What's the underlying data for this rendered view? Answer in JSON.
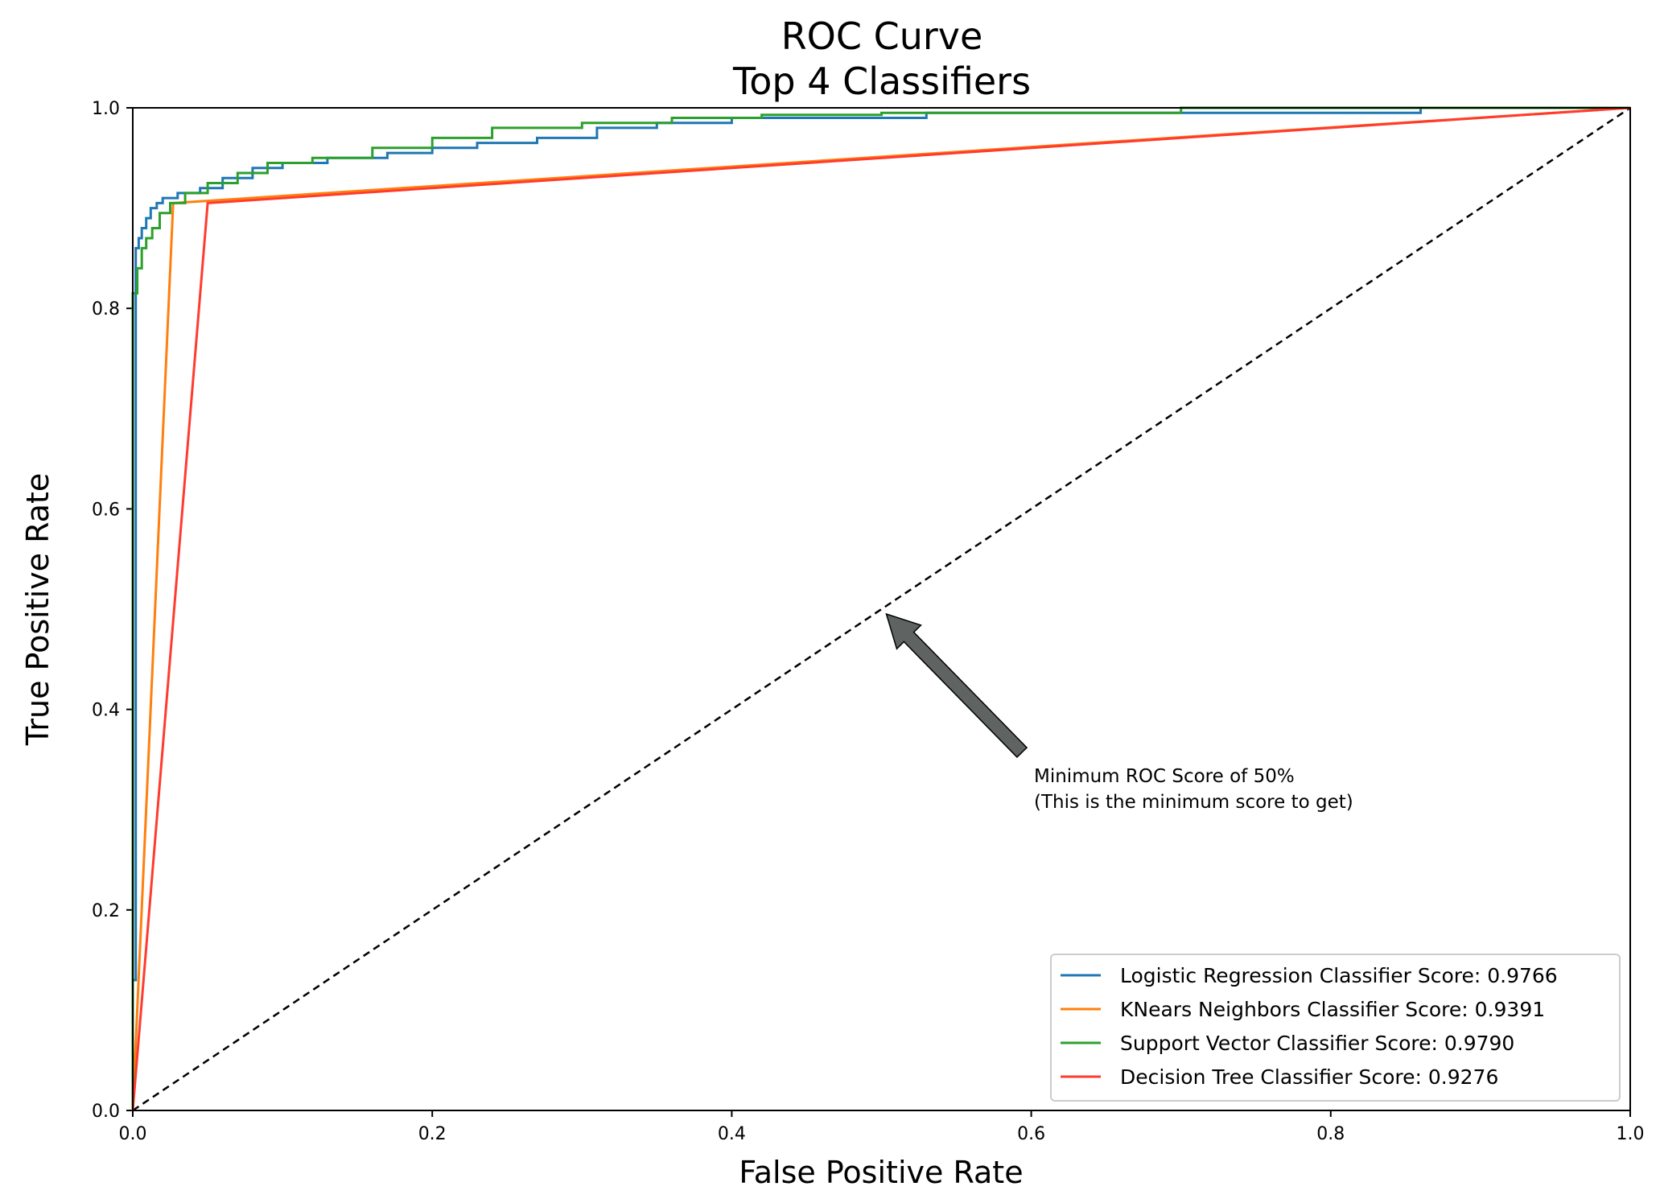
{
  "chart_data": {
    "type": "line",
    "title_lines": [
      "ROC Curve",
      "Top 4 Classifiers"
    ],
    "xlabel": "False Positive Rate",
    "ylabel": "True Positive Rate",
    "xlim": [
      0.0,
      1.0
    ],
    "ylim": [
      0.0,
      1.0
    ],
    "xticks": [
      "0.0",
      "0.2",
      "0.4",
      "0.6",
      "0.8",
      "1.0"
    ],
    "yticks": [
      "0.0",
      "0.2",
      "0.4",
      "0.6",
      "0.8",
      "1.0"
    ],
    "legend_position": "bottom-right",
    "series": [
      {
        "name": "Logistic Regression Classifier Score: 0.9766",
        "color": "#1f77b4",
        "x": [
          0.0,
          0.0,
          0.002,
          0.002,
          0.004,
          0.004,
          0.006,
          0.006,
          0.009,
          0.009,
          0.012,
          0.012,
          0.016,
          0.016,
          0.02,
          0.02,
          0.03,
          0.03,
          0.045,
          0.045,
          0.06,
          0.06,
          0.08,
          0.08,
          0.1,
          0.1,
          0.13,
          0.13,
          0.17,
          0.17,
          0.2,
          0.2,
          0.23,
          0.23,
          0.27,
          0.27,
          0.31,
          0.31,
          0.35,
          0.35,
          0.4,
          0.4,
          0.53,
          0.53,
          0.86,
          0.86,
          1.0
        ],
        "y": [
          0.0,
          0.13,
          0.13,
          0.86,
          0.86,
          0.87,
          0.87,
          0.88,
          0.88,
          0.89,
          0.89,
          0.9,
          0.9,
          0.905,
          0.905,
          0.91,
          0.91,
          0.915,
          0.915,
          0.92,
          0.92,
          0.93,
          0.93,
          0.94,
          0.94,
          0.945,
          0.945,
          0.95,
          0.95,
          0.955,
          0.955,
          0.96,
          0.96,
          0.965,
          0.965,
          0.97,
          0.97,
          0.98,
          0.98,
          0.985,
          0.985,
          0.99,
          0.99,
          0.995,
          0.995,
          1.0,
          1.0
        ]
      },
      {
        "name": "KNears Neighbors Classifier Score: 0.9391",
        "color": "#ff7f0e",
        "x": [
          0.0,
          0.027,
          1.0
        ],
        "y": [
          0.0,
          0.905,
          1.0
        ]
      },
      {
        "name": "Support Vector Classifier Score: 0.9790",
        "color": "#2ca02c",
        "x": [
          0.0,
          0.0,
          0.003,
          0.003,
          0.006,
          0.006,
          0.009,
          0.009,
          0.013,
          0.013,
          0.018,
          0.018,
          0.025,
          0.025,
          0.035,
          0.035,
          0.05,
          0.05,
          0.07,
          0.07,
          0.09,
          0.09,
          0.12,
          0.12,
          0.16,
          0.16,
          0.2,
          0.2,
          0.24,
          0.24,
          0.3,
          0.3,
          0.36,
          0.36,
          0.42,
          0.42,
          0.5,
          0.5,
          0.7,
          0.7,
          1.0
        ],
        "y": [
          0.0,
          0.815,
          0.815,
          0.84,
          0.84,
          0.86,
          0.86,
          0.87,
          0.87,
          0.88,
          0.88,
          0.895,
          0.895,
          0.905,
          0.905,
          0.915,
          0.915,
          0.925,
          0.925,
          0.935,
          0.935,
          0.945,
          0.945,
          0.95,
          0.95,
          0.96,
          0.96,
          0.97,
          0.97,
          0.98,
          0.98,
          0.985,
          0.985,
          0.99,
          0.99,
          0.993,
          0.993,
          0.995,
          0.995,
          1.0,
          1.0
        ]
      },
      {
        "name": "Decision Tree Classifier Score: 0.9276",
        "color": "#ff3b2f",
        "x": [
          0.0,
          0.05,
          1.0
        ],
        "y": [
          0.0,
          0.905,
          1.0
        ]
      }
    ],
    "reference_line": {
      "x": [
        0.0,
        1.0
      ],
      "y": [
        0.0,
        1.0
      ],
      "style": "dashed",
      "color": "#000000"
    },
    "annotation": {
      "lines": [
        "Minimum ROC Score of 50%",
        " (This is the minimum score to get)"
      ],
      "text_at": [
        0.6,
        0.3
      ],
      "arrow_to": [
        0.5,
        0.5
      ],
      "arrow_color": "#5f6361"
    }
  }
}
